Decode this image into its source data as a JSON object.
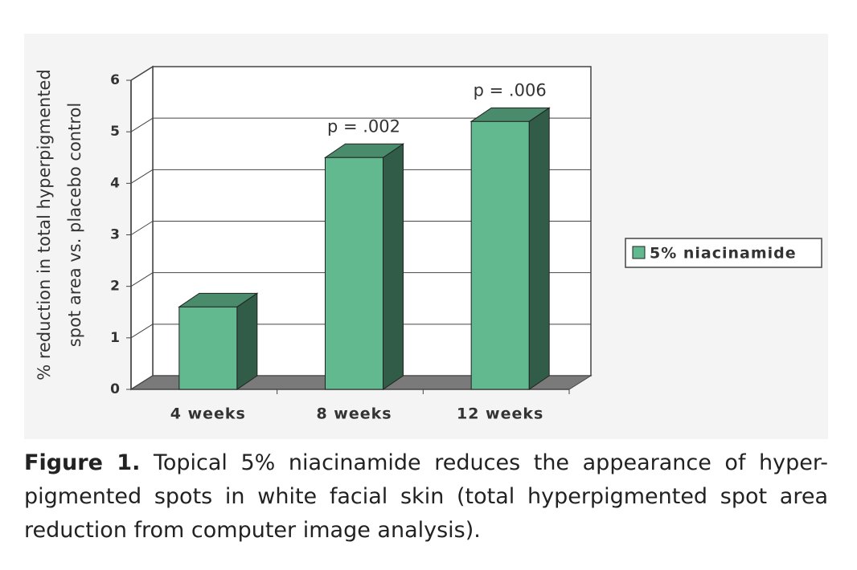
{
  "chart_data": {
    "type": "bar3d",
    "ylabel": [
      "% reduction in total hyperpigmented",
      "spot area vs. placebo control"
    ],
    "categories": [
      "4 weeks",
      "8 weeks",
      "12 weeks"
    ],
    "series": [
      {
        "name": "5% niacinamide",
        "color": "#62b98f",
        "values": [
          1.6,
          4.5,
          5.2
        ]
      }
    ],
    "ylim": [
      0,
      6
    ],
    "yticks": [
      0,
      1,
      2,
      3,
      4,
      5,
      6
    ],
    "grid": true,
    "annotations": [
      {
        "text": "p = .002",
        "category": "8 weeks"
      },
      {
        "text": "p = .006",
        "category": "12 weeks"
      }
    ],
    "legend": "right"
  },
  "caption": {
    "label": "Figure 1.",
    "text": "Topical 5% niacinamide reduces the appearance of hyper-pigmented spots in white facial skin (total hyperpigmented spot area reduction from computer image analysis)."
  }
}
